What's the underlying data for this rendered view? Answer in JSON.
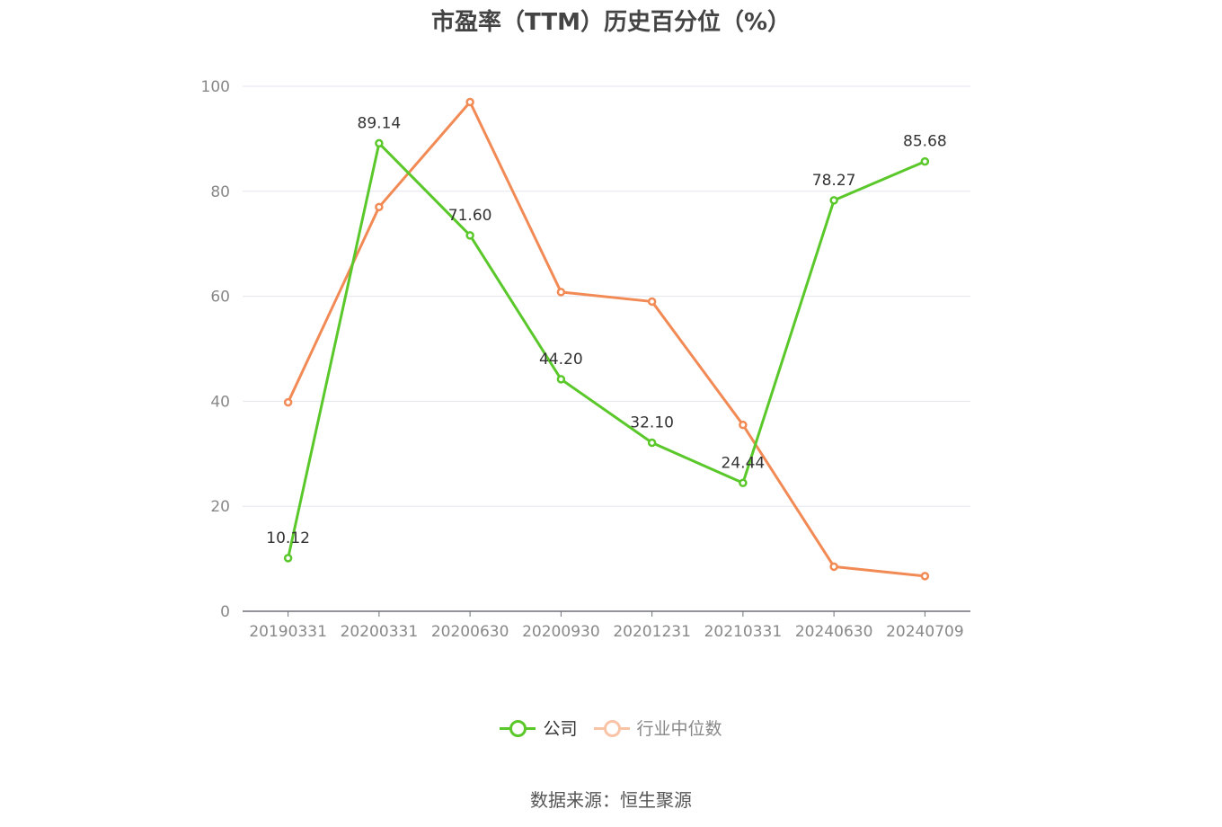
{
  "chart_data": {
    "type": "line",
    "title": "市盈率（TTM）历史百分位（%）",
    "categories": [
      "20190331",
      "20200331",
      "20200630",
      "20200930",
      "20201231",
      "20210331",
      "20240630",
      "20240709"
    ],
    "series": [
      {
        "name": "公司",
        "color": "#5ac82a",
        "values": [
          10.12,
          89.14,
          71.6,
          44.2,
          32.1,
          24.44,
          78.27,
          85.68
        ],
        "labels": [
          "10.12",
          "89.14",
          "71.60",
          "44.20",
          "32.10",
          "24.44",
          "78.27",
          "85.68"
        ]
      },
      {
        "name": "行业中位数",
        "color": "#f28a55",
        "values": [
          39.8,
          77.0,
          97.0,
          60.8,
          59.0,
          35.5,
          8.5,
          6.7
        ]
      }
    ],
    "ylim": [
      0,
      100
    ],
    "yticks": [
      0,
      20,
      40,
      60,
      80,
      100
    ],
    "grid": true,
    "legend_position": "bottom-center"
  },
  "legend": {
    "company_label": "公司",
    "industry_label": "行业中位数",
    "company_color": "#5ac82a",
    "industry_color": "#f28a55"
  },
  "source": "数据来源：恒生聚源"
}
